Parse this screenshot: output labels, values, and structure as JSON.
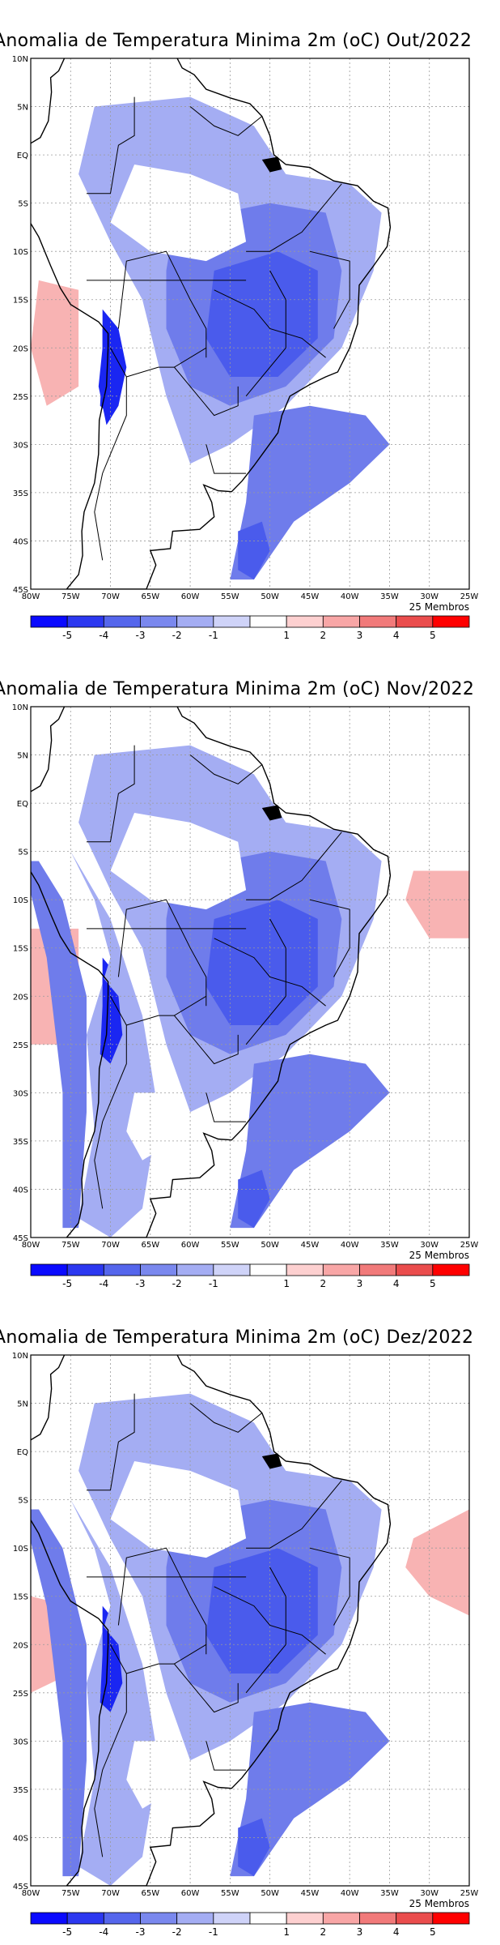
{
  "maps": [
    {
      "title": "Anomalia de Temperatura Minima 2m (oC) Out/2022"
    },
    {
      "title": "Anomalia de Temperatura Minima 2m (oC) Nov/2022"
    },
    {
      "title": "Anomalia de Temperatura Minima 2m (oC) Dez/2022"
    }
  ],
  "members_label": "25 Membros",
  "lat_labels": [
    "10N",
    "5N",
    "EQ",
    "5S",
    "10S",
    "15S",
    "20S",
    "25S",
    "30S",
    "35S",
    "40S",
    "45S"
  ],
  "lon_labels": [
    "80W",
    "75W",
    "70W",
    "65W",
    "60W",
    "55W",
    "50W",
    "45W",
    "40W",
    "35W",
    "30W",
    "25W"
  ],
  "colorbar": {
    "tick_labels": [
      "-5",
      "-4",
      "-3",
      "-2",
      "-1",
      "1",
      "2",
      "3",
      "4",
      "5"
    ],
    "colors": [
      "#0a0aff",
      "#2c38f0",
      "#5566ec",
      "#7a88ee",
      "#a4adf3",
      "#cfd3f8",
      "#ffffff",
      "#fdd0d0",
      "#f8a6a6",
      "#f17a7a",
      "#ea4d4d",
      "#ff0000"
    ]
  },
  "legend_colors": {
    "negative": "#6f7ceb",
    "positive": "#f8b3b3",
    "coast": "#000000"
  }
}
